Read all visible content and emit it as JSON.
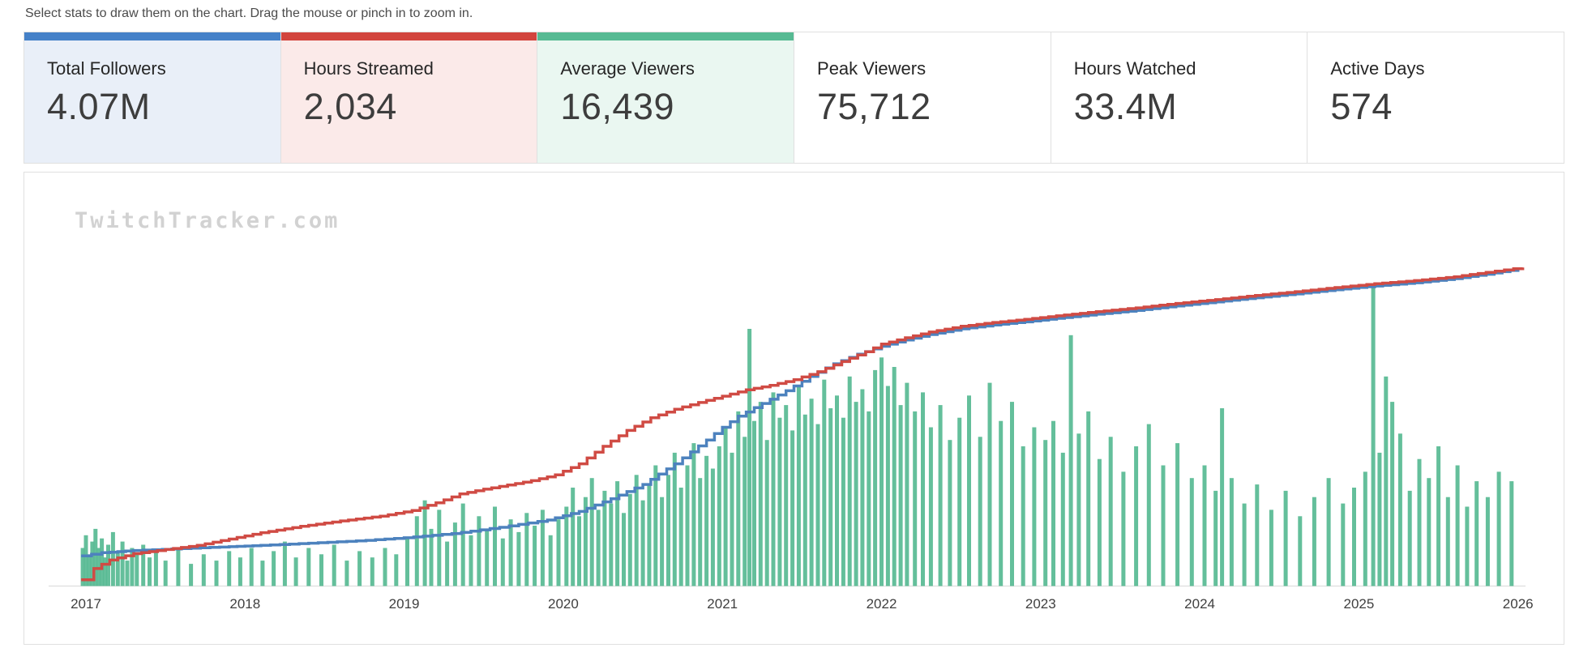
{
  "instruction": "Select stats to draw them on the chart. Drag the mouse or pinch in to zoom in.",
  "watermark": "TwitchTracker.com",
  "cards": [
    {
      "label": "Total Followers",
      "value": "4.07M",
      "selected": true,
      "accent": "#4581c8",
      "bg": "#e9eff8"
    },
    {
      "label": "Hours Streamed",
      "value": "2,034",
      "selected": true,
      "accent": "#d2453e",
      "bg": "#fbeae9"
    },
    {
      "label": "Average Viewers",
      "value": "16,439",
      "selected": true,
      "accent": "#57ba93",
      "bg": "#eaf7f1"
    },
    {
      "label": "Peak Viewers",
      "value": "75,712",
      "selected": false,
      "accent": "",
      "bg": "#ffffff"
    },
    {
      "label": "Hours Watched",
      "value": "33.4M",
      "selected": false,
      "accent": "",
      "bg": "#ffffff"
    },
    {
      "label": "Active Days",
      "value": "574",
      "selected": false,
      "accent": "",
      "bg": "#ffffff"
    }
  ],
  "chart_data": {
    "type": "mixed",
    "title": "",
    "x_ticks": [
      "2017",
      "2018",
      "2019",
      "2020",
      "2021",
      "2022",
      "2023",
      "2024",
      "2025",
      "2026"
    ],
    "x_range": [
      2016.95,
      2026.1
    ],
    "ylim": [
      0,
      1
    ],
    "grid": false,
    "legend": "none (series colors match selected stat cards)",
    "y_note": "y values are normalized 0-1 fractions of plot height; each stat is auto-scaled",
    "series": [
      {
        "name": "Total Followers",
        "type": "line",
        "color": "#4d82be",
        "total": "4.07M",
        "points": [
          [
            2016.97,
            0.095
          ],
          [
            2017.1,
            0.105
          ],
          [
            2017.3,
            0.112
          ],
          [
            2017.6,
            0.118
          ],
          [
            2017.9,
            0.124
          ],
          [
            2018.1,
            0.128
          ],
          [
            2018.4,
            0.135
          ],
          [
            2018.7,
            0.142
          ],
          [
            2019.0,
            0.152
          ],
          [
            2019.3,
            0.165
          ],
          [
            2019.6,
            0.185
          ],
          [
            2019.9,
            0.208
          ],
          [
            2020.1,
            0.235
          ],
          [
            2020.3,
            0.275
          ],
          [
            2020.5,
            0.32
          ],
          [
            2020.7,
            0.385
          ],
          [
            2020.9,
            0.46
          ],
          [
            2021.0,
            0.5
          ],
          [
            2021.1,
            0.535
          ],
          [
            2021.25,
            0.575
          ],
          [
            2021.4,
            0.615
          ],
          [
            2021.55,
            0.66
          ],
          [
            2021.7,
            0.7
          ],
          [
            2021.85,
            0.73
          ],
          [
            2022.0,
            0.755
          ],
          [
            2022.15,
            0.775
          ],
          [
            2022.3,
            0.792
          ],
          [
            2022.5,
            0.81
          ],
          [
            2022.7,
            0.822
          ],
          [
            2022.9,
            0.832
          ],
          [
            2023.1,
            0.843
          ],
          [
            2023.35,
            0.856
          ],
          [
            2023.6,
            0.868
          ],
          [
            2023.85,
            0.882
          ],
          [
            2024.1,
            0.895
          ],
          [
            2024.35,
            0.908
          ],
          [
            2024.6,
            0.92
          ],
          [
            2024.85,
            0.933
          ],
          [
            2025.1,
            0.945
          ],
          [
            2025.35,
            0.955
          ],
          [
            2025.6,
            0.968
          ],
          [
            2025.8,
            0.982
          ],
          [
            2026.0,
            0.998
          ]
        ]
      },
      {
        "name": "Hours Streamed",
        "type": "line",
        "color": "#d04b44",
        "total": "2,034",
        "points": [
          [
            2016.97,
            0.02
          ],
          [
            2017.05,
            0.055
          ],
          [
            2017.15,
            0.082
          ],
          [
            2017.3,
            0.102
          ],
          [
            2017.5,
            0.115
          ],
          [
            2017.7,
            0.128
          ],
          [
            2017.9,
            0.148
          ],
          [
            2018.1,
            0.168
          ],
          [
            2018.35,
            0.188
          ],
          [
            2018.6,
            0.205
          ],
          [
            2018.85,
            0.22
          ],
          [
            2019.05,
            0.238
          ],
          [
            2019.2,
            0.262
          ],
          [
            2019.35,
            0.29
          ],
          [
            2019.5,
            0.305
          ],
          [
            2019.65,
            0.318
          ],
          [
            2019.8,
            0.332
          ],
          [
            2019.95,
            0.35
          ],
          [
            2020.1,
            0.385
          ],
          [
            2020.25,
            0.44
          ],
          [
            2020.4,
            0.49
          ],
          [
            2020.55,
            0.53
          ],
          [
            2020.7,
            0.557
          ],
          [
            2020.85,
            0.578
          ],
          [
            2021.0,
            0.598
          ],
          [
            2021.15,
            0.618
          ],
          [
            2021.3,
            0.632
          ],
          [
            2021.45,
            0.65
          ],
          [
            2021.6,
            0.675
          ],
          [
            2021.75,
            0.707
          ],
          [
            2021.9,
            0.738
          ],
          [
            2022.0,
            0.762
          ],
          [
            2022.15,
            0.782
          ],
          [
            2022.3,
            0.8
          ],
          [
            2022.5,
            0.818
          ],
          [
            2022.7,
            0.83
          ],
          [
            2022.9,
            0.84
          ],
          [
            2023.1,
            0.851
          ],
          [
            2023.35,
            0.864
          ],
          [
            2023.6,
            0.876
          ],
          [
            2023.85,
            0.89
          ],
          [
            2024.1,
            0.902
          ],
          [
            2024.35,
            0.915
          ],
          [
            2024.6,
            0.927
          ],
          [
            2024.85,
            0.94
          ],
          [
            2025.1,
            0.952
          ],
          [
            2025.35,
            0.962
          ],
          [
            2025.6,
            0.974
          ],
          [
            2025.8,
            0.988
          ],
          [
            2026.03,
            1.003
          ]
        ]
      },
      {
        "name": "Average Viewers",
        "type": "bar",
        "color": "#57ba93",
        "average": "16,439",
        "peak": "75,712",
        "bars": [
          [
            2016.98,
            0.12
          ],
          [
            2017.0,
            0.16
          ],
          [
            2017.02,
            0.1
          ],
          [
            2017.04,
            0.14
          ],
          [
            2017.06,
            0.18
          ],
          [
            2017.08,
            0.12
          ],
          [
            2017.1,
            0.15
          ],
          [
            2017.12,
            0.09
          ],
          [
            2017.14,
            0.13
          ],
          [
            2017.17,
            0.17
          ],
          [
            2017.2,
            0.11
          ],
          [
            2017.23,
            0.14
          ],
          [
            2017.26,
            0.08
          ],
          [
            2017.29,
            0.12
          ],
          [
            2017.32,
            0.1
          ],
          [
            2017.36,
            0.13
          ],
          [
            2017.4,
            0.09
          ],
          [
            2017.44,
            0.11
          ],
          [
            2017.5,
            0.08
          ],
          [
            2017.58,
            0.12
          ],
          [
            2017.66,
            0.07
          ],
          [
            2017.74,
            0.1
          ],
          [
            2017.82,
            0.08
          ],
          [
            2017.9,
            0.11
          ],
          [
            2017.97,
            0.09
          ],
          [
            2018.04,
            0.12
          ],
          [
            2018.11,
            0.08
          ],
          [
            2018.18,
            0.11
          ],
          [
            2018.25,
            0.14
          ],
          [
            2018.32,
            0.09
          ],
          [
            2018.4,
            0.12
          ],
          [
            2018.48,
            0.1
          ],
          [
            2018.56,
            0.13
          ],
          [
            2018.64,
            0.08
          ],
          [
            2018.72,
            0.11
          ],
          [
            2018.8,
            0.09
          ],
          [
            2018.88,
            0.12
          ],
          [
            2018.95,
            0.1
          ],
          [
            2019.02,
            0.15
          ],
          [
            2019.08,
            0.22
          ],
          [
            2019.13,
            0.27
          ],
          [
            2019.17,
            0.18
          ],
          [
            2019.22,
            0.24
          ],
          [
            2019.27,
            0.14
          ],
          [
            2019.32,
            0.2
          ],
          [
            2019.37,
            0.26
          ],
          [
            2019.42,
            0.16
          ],
          [
            2019.47,
            0.22
          ],
          [
            2019.52,
            0.18
          ],
          [
            2019.57,
            0.25
          ],
          [
            2019.62,
            0.15
          ],
          [
            2019.67,
            0.21
          ],
          [
            2019.72,
            0.17
          ],
          [
            2019.77,
            0.23
          ],
          [
            2019.82,
            0.19
          ],
          [
            2019.87,
            0.24
          ],
          [
            2019.92,
            0.16
          ],
          [
            2019.97,
            0.21
          ],
          [
            2020.02,
            0.25
          ],
          [
            2020.06,
            0.31
          ],
          [
            2020.1,
            0.22
          ],
          [
            2020.14,
            0.28
          ],
          [
            2020.18,
            0.34
          ],
          [
            2020.22,
            0.24
          ],
          [
            2020.26,
            0.3
          ],
          [
            2020.3,
            0.26
          ],
          [
            2020.34,
            0.33
          ],
          [
            2020.38,
            0.23
          ],
          [
            2020.42,
            0.29
          ],
          [
            2020.46,
            0.35
          ],
          [
            2020.5,
            0.27
          ],
          [
            2020.54,
            0.32
          ],
          [
            2020.58,
            0.38
          ],
          [
            2020.62,
            0.28
          ],
          [
            2020.66,
            0.35
          ],
          [
            2020.7,
            0.42
          ],
          [
            2020.74,
            0.31
          ],
          [
            2020.78,
            0.38
          ],
          [
            2020.82,
            0.45
          ],
          [
            2020.86,
            0.34
          ],
          [
            2020.9,
            0.41
          ],
          [
            2020.94,
            0.37
          ],
          [
            2020.98,
            0.44
          ],
          [
            2021.02,
            0.5
          ],
          [
            2021.06,
            0.42
          ],
          [
            2021.1,
            0.55
          ],
          [
            2021.14,
            0.47
          ],
          [
            2021.17,
            0.81
          ],
          [
            2021.2,
            0.52
          ],
          [
            2021.24,
            0.58
          ],
          [
            2021.28,
            0.46
          ],
          [
            2021.32,
            0.61
          ],
          [
            2021.36,
            0.53
          ],
          [
            2021.4,
            0.57
          ],
          [
            2021.44,
            0.49
          ],
          [
            2021.48,
            0.63
          ],
          [
            2021.52,
            0.54
          ],
          [
            2021.56,
            0.59
          ],
          [
            2021.6,
            0.51
          ],
          [
            2021.64,
            0.65
          ],
          [
            2021.68,
            0.56
          ],
          [
            2021.72,
            0.6
          ],
          [
            2021.76,
            0.53
          ],
          [
            2021.8,
            0.66
          ],
          [
            2021.84,
            0.58
          ],
          [
            2021.88,
            0.62
          ],
          [
            2021.92,
            0.55
          ],
          [
            2021.96,
            0.68
          ],
          [
            2022.0,
            0.72
          ],
          [
            2022.04,
            0.63
          ],
          [
            2022.08,
            0.69
          ],
          [
            2022.12,
            0.57
          ],
          [
            2022.16,
            0.64
          ],
          [
            2022.21,
            0.55
          ],
          [
            2022.26,
            0.61
          ],
          [
            2022.31,
            0.5
          ],
          [
            2022.37,
            0.57
          ],
          [
            2022.43,
            0.46
          ],
          [
            2022.49,
            0.53
          ],
          [
            2022.55,
            0.6
          ],
          [
            2022.62,
            0.47
          ],
          [
            2022.68,
            0.64
          ],
          [
            2022.75,
            0.52
          ],
          [
            2022.82,
            0.58
          ],
          [
            2022.89,
            0.44
          ],
          [
            2022.96,
            0.5
          ],
          [
            2023.03,
            0.46
          ],
          [
            2023.08,
            0.52
          ],
          [
            2023.14,
            0.42
          ],
          [
            2023.19,
            0.79
          ],
          [
            2023.24,
            0.48
          ],
          [
            2023.3,
            0.55
          ],
          [
            2023.37,
            0.4
          ],
          [
            2023.44,
            0.47
          ],
          [
            2023.52,
            0.36
          ],
          [
            2023.6,
            0.44
          ],
          [
            2023.68,
            0.51
          ],
          [
            2023.77,
            0.38
          ],
          [
            2023.86,
            0.45
          ],
          [
            2023.95,
            0.34
          ],
          [
            2024.03,
            0.38
          ],
          [
            2024.1,
            0.3
          ],
          [
            2024.14,
            0.56
          ],
          [
            2024.2,
            0.34
          ],
          [
            2024.28,
            0.26
          ],
          [
            2024.36,
            0.32
          ],
          [
            2024.45,
            0.24
          ],
          [
            2024.54,
            0.3
          ],
          [
            2024.63,
            0.22
          ],
          [
            2024.72,
            0.28
          ],
          [
            2024.81,
            0.34
          ],
          [
            2024.9,
            0.26
          ],
          [
            2024.97,
            0.31
          ],
          [
            2025.04,
            0.36
          ],
          [
            2025.09,
            0.94
          ],
          [
            2025.13,
            0.42
          ],
          [
            2025.17,
            0.66
          ],
          [
            2025.21,
            0.58
          ],
          [
            2025.26,
            0.48
          ],
          [
            2025.32,
            0.3
          ],
          [
            2025.38,
            0.4
          ],
          [
            2025.44,
            0.34
          ],
          [
            2025.5,
            0.44
          ],
          [
            2025.56,
            0.28
          ],
          [
            2025.62,
            0.38
          ],
          [
            2025.68,
            0.25
          ],
          [
            2025.74,
            0.33
          ],
          [
            2025.81,
            0.28
          ],
          [
            2025.88,
            0.36
          ],
          [
            2025.96,
            0.33
          ]
        ]
      }
    ]
  }
}
